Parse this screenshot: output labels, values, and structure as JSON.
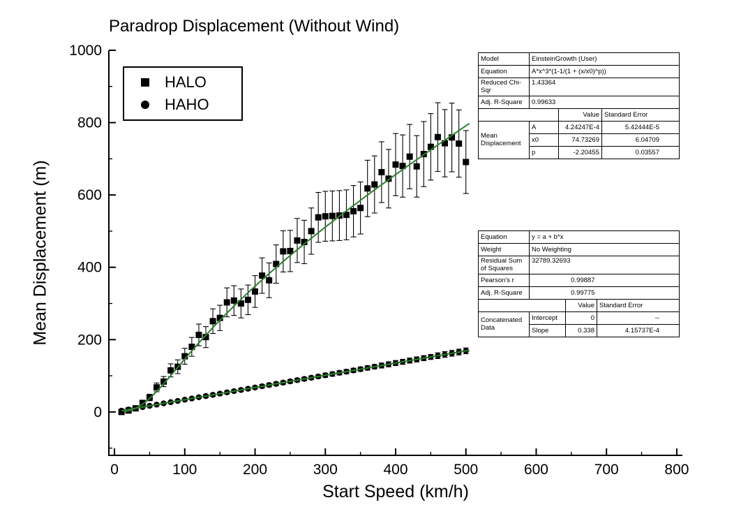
{
  "colors": {
    "fit_line": "#2d7f2d",
    "marker": "#000000",
    "axis": "#000000"
  },
  "chart_data": {
    "type": "scatter",
    "title": "Paradrop Displacement (Without Wind)",
    "xlabel": "Start Speed (km/h)",
    "ylabel": "Mean Displacement (m)",
    "xlim": [
      -8,
      808
    ],
    "ylim": [
      -120,
      1000
    ],
    "xticks": [
      0,
      100,
      200,
      300,
      400,
      500,
      600,
      700,
      800
    ],
    "xminor": [
      50,
      150,
      250,
      350,
      450,
      550,
      650,
      750
    ],
    "yticks": [
      0,
      200,
      400,
      600,
      800,
      1000
    ],
    "yminor": [
      -100,
      100,
      300,
      500,
      700,
      900
    ],
    "grid": false,
    "legend_position": "top-left",
    "series": [
      {
        "name": "HALO",
        "marker": "square",
        "x": [
          10,
          20,
          30,
          40,
          50,
          60,
          70,
          80,
          90,
          100,
          110,
          120,
          130,
          140,
          150,
          160,
          170,
          180,
          190,
          200,
          210,
          220,
          230,
          240,
          250,
          260,
          270,
          280,
          290,
          300,
          310,
          320,
          330,
          340,
          350,
          360,
          370,
          380,
          390,
          400,
          410,
          420,
          430,
          440,
          450,
          460,
          470,
          480,
          490,
          500
        ],
        "y": [
          0,
          4,
          10,
          25,
          40,
          68,
          84,
          115,
          125,
          154,
          180,
          213,
          207,
          251,
          260,
          303,
          308,
          300,
          310,
          333,
          377,
          364,
          409,
          444,
          445,
          474,
          470,
          500,
          538,
          541,
          542,
          543,
          545,
          555,
          564,
          618,
          629,
          663,
          645,
          684,
          680,
          706,
          679,
          713,
          733,
          760,
          743,
          759,
          742,
          691
        ],
        "yerr": [
          4,
          4,
          5,
          7,
          9,
          12,
          14,
          18,
          19,
          22,
          26,
          30,
          29,
          34,
          35,
          40,
          41,
          40,
          41,
          44,
          49,
          48,
          53,
          57,
          57,
          61,
          60,
          64,
          69,
          69,
          69,
          69,
          69,
          71,
          72,
          78,
          79,
          84,
          81,
          86,
          86,
          89,
          85,
          90,
          92,
          95,
          93,
          95,
          93,
          87
        ]
      },
      {
        "name": "HAHO",
        "marker": "circle",
        "x": [
          10,
          20,
          30,
          40,
          50,
          60,
          70,
          80,
          90,
          100,
          110,
          120,
          130,
          140,
          150,
          160,
          170,
          180,
          190,
          200,
          210,
          220,
          230,
          240,
          250,
          260,
          270,
          280,
          290,
          300,
          310,
          320,
          330,
          340,
          350,
          360,
          370,
          380,
          390,
          400,
          410,
          420,
          430,
          440,
          450,
          460,
          470,
          480,
          490,
          500
        ],
        "y": [
          3.4,
          6.8,
          10.1,
          13.5,
          16.9,
          20.3,
          23.7,
          27,
          30.4,
          33.8,
          37.2,
          40.6,
          43.9,
          47.3,
          50.7,
          54.1,
          57.5,
          60.8,
          64.2,
          67.6,
          71,
          74.4,
          77.7,
          81.1,
          84.5,
          87.9,
          91.3,
          94.6,
          98,
          101.4,
          104.8,
          108.2,
          111.5,
          114.9,
          118.3,
          121.7,
          125.1,
          128.4,
          131.8,
          135.2,
          138.6,
          142,
          145.3,
          148.7,
          152.1,
          155.5,
          158.9,
          162.2,
          165.6,
          169
        ],
        "yerr": [
          2,
          2,
          2,
          2,
          3,
          3,
          3,
          3,
          3,
          3,
          3,
          3,
          4,
          4,
          4,
          4,
          4,
          4,
          4,
          4,
          5,
          5,
          5,
          5,
          5,
          5,
          5,
          5,
          5,
          6,
          6,
          6,
          6,
          6,
          6,
          6,
          6,
          7,
          7,
          7,
          7,
          7,
          7,
          7,
          7,
          8,
          8,
          8,
          8,
          8
        ]
      }
    ],
    "fits": [
      {
        "name": "HALO fit",
        "type": "einstein_growth",
        "A": 0.000424247,
        "x0": 74.73269,
        "p": -2.20455,
        "x_range": [
          15,
          505
        ]
      },
      {
        "name": "HAHO fit",
        "type": "linear",
        "intercept": 0,
        "slope": 0.338,
        "x_range": [
          10,
          505
        ]
      }
    ]
  },
  "tables": {
    "nonlinear": {
      "model_label": "Model",
      "model_value": "EinsteinGrowth (User)",
      "equation_label": "Equation",
      "equation_value": "A*x^3*(1-1/(1 + (x/x0)^p))",
      "chisqr_label": "Reduced Chi-Sqr",
      "chisqr_value": "1.43364",
      "adjr_label": "Adj. R-Square",
      "adjr_value": "0.99633",
      "value_header": "Value",
      "stderr_header": "Standard Error",
      "group_label": "Mean Displacement",
      "params": [
        {
          "name": "A",
          "value": "4.24247E-4",
          "stderr": "5.42444E-5"
        },
        {
          "name": "x0",
          "value": "74.73269",
          "stderr": "6.04709"
        },
        {
          "name": "p",
          "value": "-2.20455",
          "stderr": "0.03557"
        }
      ]
    },
    "linear": {
      "equation_label": "Equation",
      "equation_value": "y = a + b*x",
      "weight_label": "Weight",
      "weight_value": "No Weighting",
      "rss_label": "Residual Sum of Squares",
      "rss_value": "32789.32693",
      "pearson_label": "Pearson's r",
      "pearson_value": "0.99887",
      "adjr_label": "Adj. R-Square",
      "adjr_value": "0.99775",
      "value_header": "Value",
      "stderr_header": "Standard Error",
      "group_label": "Concatenated Data",
      "params": [
        {
          "name": "Intercept",
          "value": "0",
          "stderr": "--"
        },
        {
          "name": "Slope",
          "value": "0.338",
          "stderr": "4.15737E-4"
        }
      ]
    }
  }
}
